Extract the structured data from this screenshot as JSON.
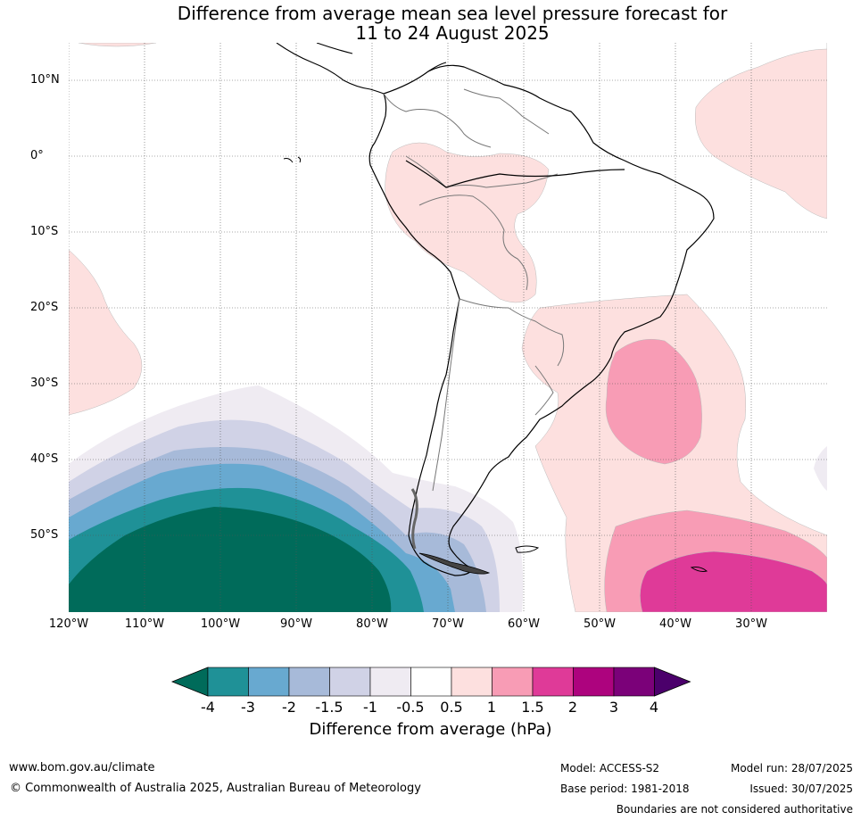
{
  "title_line1": "Difference from average mean sea level pressure forecast for",
  "title_line2": "11 to 24 August 2025",
  "lat_labels": [
    "10°N",
    "0°",
    "10°S",
    "20°S",
    "30°S",
    "40°S",
    "50°S"
  ],
  "lon_labels": [
    "120°W",
    "110°W",
    "100°W",
    "90°W",
    "80°W",
    "70°W",
    "60°W",
    "50°W",
    "40°W",
    "30°W"
  ],
  "colorbar": {
    "tick_labels": [
      "-4",
      "-3",
      "-2",
      "-1.5",
      "-1",
      "-0.5",
      "0.5",
      "1",
      "1.5",
      "2",
      "3",
      "4"
    ],
    "colors": [
      "#006b5a",
      "#1f9197",
      "#68a9d0",
      "#a7bad9",
      "#d0d2e6",
      "#efebf2",
      "#ffffff",
      "#fde0df",
      "#f89cb5",
      "#df3a98",
      "#ad037e",
      "#7b0179",
      "#4b006b"
    ],
    "label": "Difference from average (hPa)"
  },
  "footer": {
    "website": "www.bom.gov.au/climate",
    "copyright": "© Commonwealth of Australia 2025, Australian Bureau of Meteorology",
    "model": "Model: ACCESS-S2",
    "base_period": "Base period: 1981-2018",
    "model_run": "Model run: 28/07/2025",
    "issued": "Issued: 30/07/2025",
    "disclaimer": "Boundaries are not considered authoritative"
  }
}
